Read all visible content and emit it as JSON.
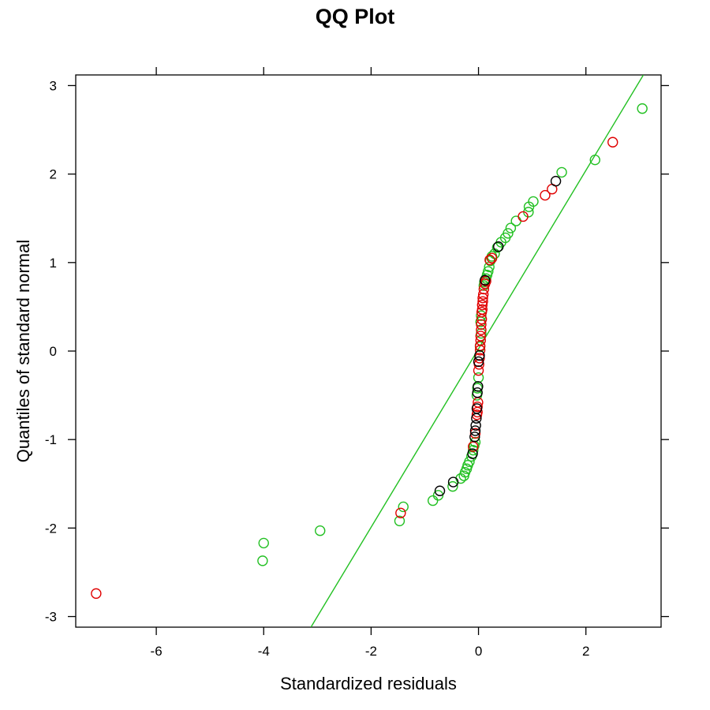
{
  "chart_data": {
    "type": "scatter",
    "title": "QQ Plot",
    "xlabel": "Standardized residuals",
    "ylabel": "Quantiles of standard normal",
    "xlim": [
      -7.5,
      3.4
    ],
    "ylim": [
      -3.12,
      3.12
    ],
    "xticks": [
      -6,
      -4,
      -2,
      0,
      2
    ],
    "yticks": [
      -3,
      -2,
      -1,
      0,
      1,
      2,
      3
    ],
    "grid": false,
    "reference_line": {
      "color": "#22c022",
      "points": [
        [
          -3.12,
          -3.12
        ],
        [
          3.07,
          3.12
        ]
      ]
    },
    "series": [
      {
        "color": "#22c022",
        "points": [
          [
            3.05,
            2.74
          ],
          [
            2.17,
            2.16
          ],
          [
            1.55,
            2.02
          ],
          [
            1.02,
            1.69
          ],
          [
            0.94,
            1.63
          ],
          [
            0.93,
            1.57
          ],
          [
            0.7,
            1.47
          ],
          [
            0.6,
            1.39
          ],
          [
            0.55,
            1.33
          ],
          [
            0.5,
            1.28
          ],
          [
            0.42,
            1.23
          ],
          [
            0.35,
            1.17
          ],
          [
            0.3,
            1.1
          ],
          [
            0.25,
            1.07
          ],
          [
            0.22,
            1.02
          ],
          [
            0.2,
            0.95
          ],
          [
            0.18,
            0.9
          ],
          [
            0.16,
            0.86
          ],
          [
            0.14,
            0.82
          ],
          [
            0.11,
            0.78
          ],
          [
            0.1,
            0.74
          ],
          [
            0.05,
            0.4
          ],
          [
            0.04,
            0.33
          ],
          [
            0.05,
            0.2
          ],
          [
            0.03,
            0.05
          ],
          [
            0.0,
            -0.3
          ],
          [
            -0.02,
            -0.42
          ],
          [
            -0.03,
            -0.5
          ],
          [
            -0.06,
            -1.03
          ],
          [
            -0.08,
            -1.07
          ],
          [
            -0.1,
            -1.12
          ],
          [
            -0.13,
            -1.19
          ],
          [
            -0.17,
            -1.25
          ],
          [
            -0.2,
            -1.29
          ],
          [
            -0.22,
            -1.33
          ],
          [
            -0.25,
            -1.37
          ],
          [
            -0.27,
            -1.41
          ],
          [
            -0.33,
            -1.44
          ],
          [
            -0.48,
            -1.53
          ],
          [
            -0.75,
            -1.63
          ],
          [
            -0.85,
            -1.69
          ],
          [
            -1.4,
            -1.76
          ],
          [
            -1.47,
            -1.92
          ],
          [
            -2.95,
            -2.03
          ],
          [
            -4.0,
            -2.17
          ],
          [
            -4.02,
            -2.37
          ]
        ]
      },
      {
        "color": "#e00000",
        "points": [
          [
            2.5,
            2.36
          ],
          [
            1.37,
            1.83
          ],
          [
            1.24,
            1.76
          ],
          [
            0.83,
            1.52
          ],
          [
            0.25,
            1.05
          ],
          [
            0.21,
            1.03
          ],
          [
            0.14,
            0.79
          ],
          [
            0.12,
            0.76
          ],
          [
            0.1,
            0.7
          ],
          [
            0.09,
            0.64
          ],
          [
            0.08,
            0.6
          ],
          [
            0.08,
            0.56
          ],
          [
            0.07,
            0.52
          ],
          [
            0.07,
            0.47
          ],
          [
            0.06,
            0.44
          ],
          [
            0.06,
            0.36
          ],
          [
            0.05,
            0.3
          ],
          [
            0.05,
            0.24
          ],
          [
            0.04,
            0.17
          ],
          [
            0.04,
            0.12
          ],
          [
            0.03,
            0.06
          ],
          [
            0.03,
            0.01
          ],
          [
            0.02,
            -0.08
          ],
          [
            0.01,
            -0.15
          ],
          [
            0.0,
            -0.22
          ],
          [
            -0.01,
            -0.58
          ],
          [
            -0.02,
            -0.63
          ],
          [
            -0.02,
            -0.69
          ],
          [
            -0.03,
            -0.72
          ],
          [
            -0.06,
            -0.93
          ],
          [
            -0.1,
            -1.08
          ],
          [
            -1.45,
            -1.83
          ],
          [
            -7.12,
            -2.74
          ]
        ]
      },
      {
        "color": "#000000",
        "points": [
          [
            1.44,
            1.92
          ],
          [
            0.37,
            1.18
          ],
          [
            0.12,
            0.8
          ],
          [
            0.02,
            -0.05
          ],
          [
            0.0,
            -0.12
          ],
          [
            -0.01,
            -0.4
          ],
          [
            -0.02,
            -0.47
          ],
          [
            -0.03,
            -0.65
          ],
          [
            -0.04,
            -0.76
          ],
          [
            -0.05,
            -0.84
          ],
          [
            -0.06,
            -0.9
          ],
          [
            -0.07,
            -0.97
          ],
          [
            -0.11,
            -1.16
          ],
          [
            -0.47,
            -1.48
          ],
          [
            -0.72,
            -1.58
          ]
        ]
      }
    ]
  }
}
